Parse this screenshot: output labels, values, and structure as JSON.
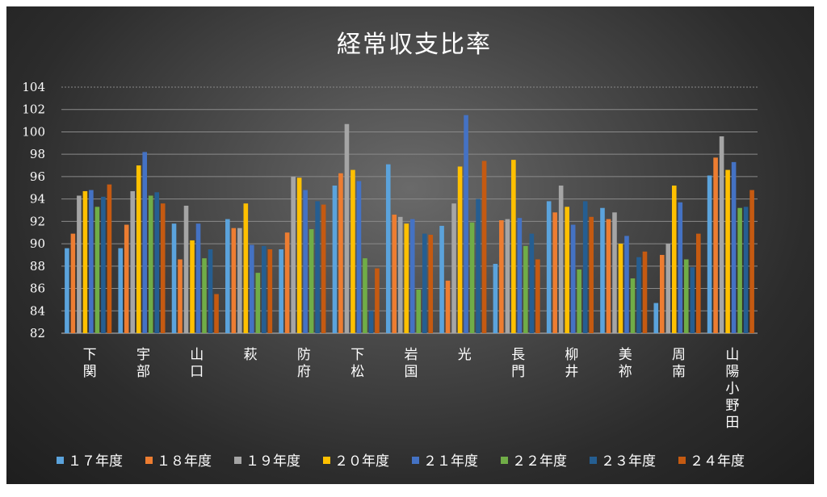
{
  "chart_data": {
    "type": "bar",
    "title": "経常収支比率",
    "ylim": [
      82,
      104
    ],
    "yticks": [
      82,
      84,
      86,
      88,
      90,
      92,
      94,
      96,
      98,
      100,
      102,
      104
    ],
    "grid": true,
    "legend_position": "bottom",
    "categories": [
      "下関",
      "宇部",
      "山口",
      "萩",
      "防府",
      "下松",
      "岩国",
      "光",
      "長門",
      "柳井",
      "美祢",
      "周南",
      "山陽小野田"
    ],
    "series": [
      {
        "name": "１７年度",
        "color": "#5ba3dc",
        "values": [
          89.6,
          89.6,
          91.8,
          92.2,
          89.5,
          95.2,
          97.1,
          91.6,
          88.2,
          93.8,
          93.2,
          84.7,
          96.1
        ]
      },
      {
        "name": "１８年度",
        "color": "#ed7d31",
        "values": [
          90.9,
          91.7,
          88.6,
          91.4,
          91.0,
          96.3,
          92.6,
          86.7,
          92.1,
          92.8,
          92.2,
          89.0,
          97.7
        ]
      },
      {
        "name": "１９年度",
        "color": "#a5a5a5",
        "values": [
          94.3,
          94.7,
          93.4,
          91.4,
          96.0,
          100.7,
          92.4,
          93.6,
          92.2,
          95.2,
          92.8,
          90.0,
          99.6
        ]
      },
      {
        "name": "２０年度",
        "color": "#ffc000",
        "values": [
          94.7,
          97.0,
          90.3,
          93.6,
          95.9,
          96.6,
          91.8,
          96.9,
          97.5,
          93.3,
          90.0,
          95.2,
          96.6
        ]
      },
      {
        "name": "２１年度",
        "color": "#4472c4",
        "values": [
          94.8,
          98.2,
          91.8,
          89.9,
          94.8,
          95.6,
          92.2,
          101.5,
          92.3,
          91.7,
          90.7,
          93.7,
          97.3
        ]
      },
      {
        "name": "２２年度",
        "color": "#70ad47",
        "values": [
          93.3,
          94.3,
          88.7,
          87.4,
          91.3,
          88.7,
          85.9,
          91.9,
          89.8,
          87.7,
          86.9,
          88.6,
          93.2
        ]
      },
      {
        "name": "２３年度",
        "color": "#255e91",
        "values": [
          94.2,
          94.6,
          89.5,
          89.8,
          93.8,
          84.0,
          90.9,
          94.0,
          90.9,
          93.8,
          88.8,
          87.9,
          93.3
        ]
      },
      {
        "name": "２４年度",
        "color": "#c55a11",
        "values": [
          95.3,
          93.6,
          85.5,
          89.5,
          93.5,
          87.8,
          90.8,
          97.4,
          88.6,
          92.4,
          89.3,
          90.9,
          94.8
        ]
      }
    ]
  }
}
